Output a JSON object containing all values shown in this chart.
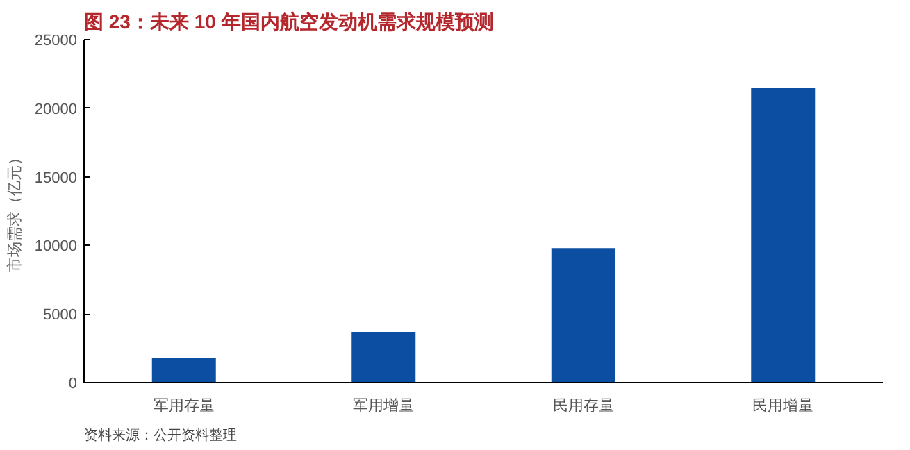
{
  "chart_data": {
    "type": "bar",
    "title": "图 23：未来 10 年国内航空发动机需求规模预测",
    "ylabel": "市场需求（亿元）",
    "categories": [
      "军用存量",
      "军用增量",
      "民用存量",
      "民用增量"
    ],
    "values": [
      1800,
      3700,
      9800,
      21500
    ],
    "color": "#0b4ea2",
    "ylim": [
      0,
      25000
    ],
    "yticks": [
      0,
      5000,
      10000,
      15000,
      20000,
      25000
    ],
    "grid": false,
    "annotations": [
      "资料来源：公开资料整理"
    ]
  }
}
